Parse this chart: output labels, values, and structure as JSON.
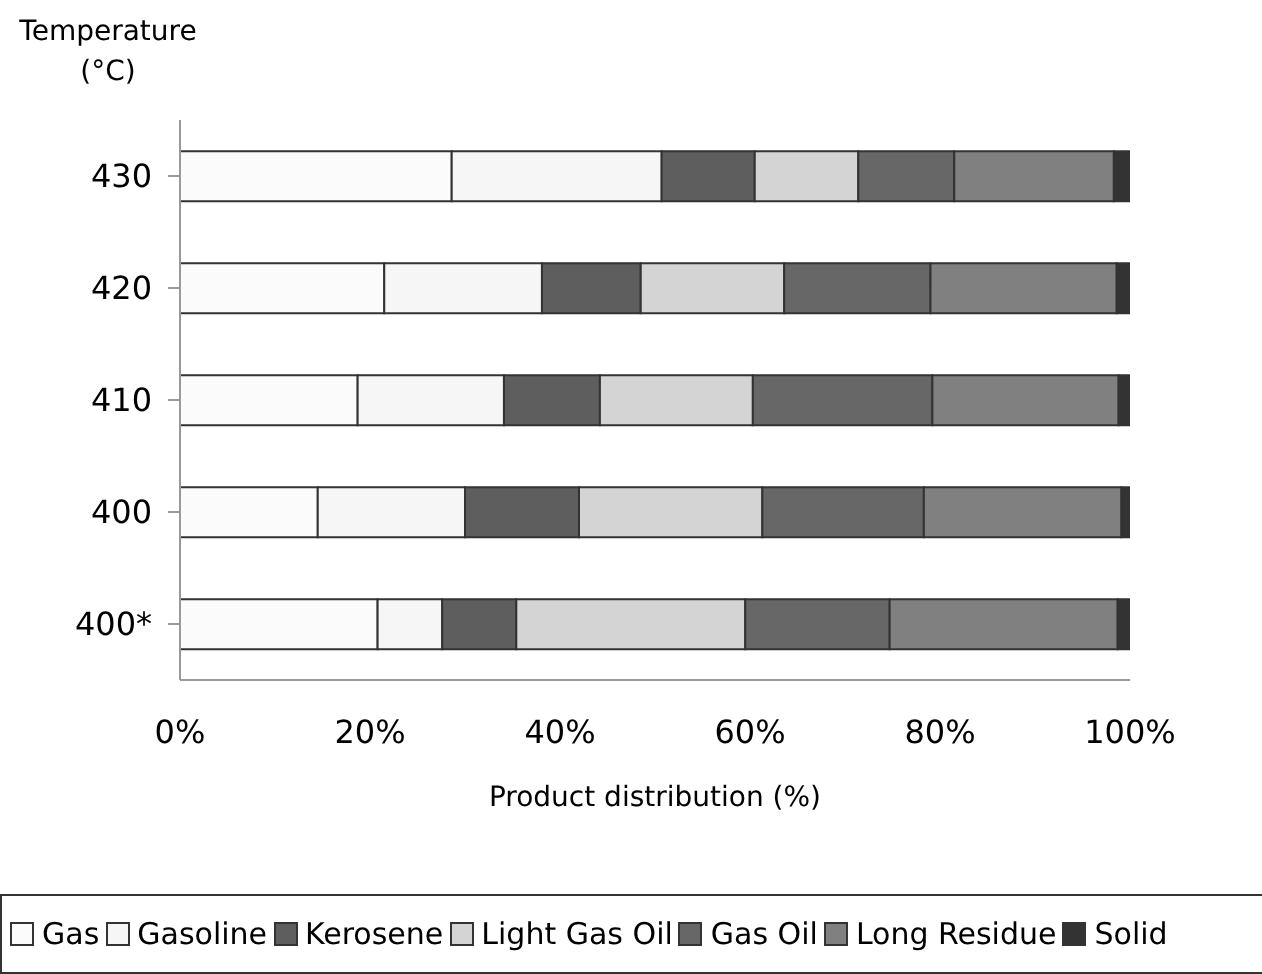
{
  "chart_data": {
    "type": "bar",
    "orientation": "horizontal",
    "stacked": true,
    "ylabel": "Temperature (°C)",
    "xlabel": "Product distribution (%)",
    "categories": [
      "430",
      "420",
      "410",
      "400",
      "400*"
    ],
    "xlim": [
      0,
      100
    ],
    "xticks": [
      {
        "value": 0,
        "label": "0%"
      },
      {
        "value": 20,
        "label": "20%"
      },
      {
        "value": 40,
        "label": "40%"
      },
      {
        "value": 60,
        "label": "60%"
      },
      {
        "value": 80,
        "label": "80%"
      },
      {
        "value": 100,
        "label": "100%"
      }
    ],
    "grid": false,
    "legend": "bottom",
    "series": [
      {
        "name": "Gas",
        "color": "#fbfbfb",
        "values": [
          28.6,
          21.5,
          18.7,
          14.5,
          20.8
        ]
      },
      {
        "name": "Gasoline",
        "color": "#f6f6f6",
        "values": [
          22.1,
          16.6,
          15.4,
          15.5,
          6.8
        ]
      },
      {
        "name": "Kerosene",
        "color": "#5e5e5e",
        "values": [
          9.8,
          10.4,
          10.1,
          12.0,
          7.8
        ]
      },
      {
        "name": "Light Gas Oil",
        "color": "#d4d4d4",
        "values": [
          10.9,
          15.1,
          16.1,
          19.3,
          24.1
        ]
      },
      {
        "name": "Gas Oil",
        "color": "#676767",
        "values": [
          10.1,
          15.4,
          18.9,
          17.0,
          15.2
        ]
      },
      {
        "name": "Long Residue",
        "color": "#808080",
        "values": [
          16.8,
          19.6,
          19.6,
          20.8,
          24.0
        ]
      },
      {
        "name": "Solid",
        "color": "#333333",
        "values": [
          1.7,
          1.4,
          1.2,
          0.9,
          1.3
        ]
      }
    ]
  }
}
